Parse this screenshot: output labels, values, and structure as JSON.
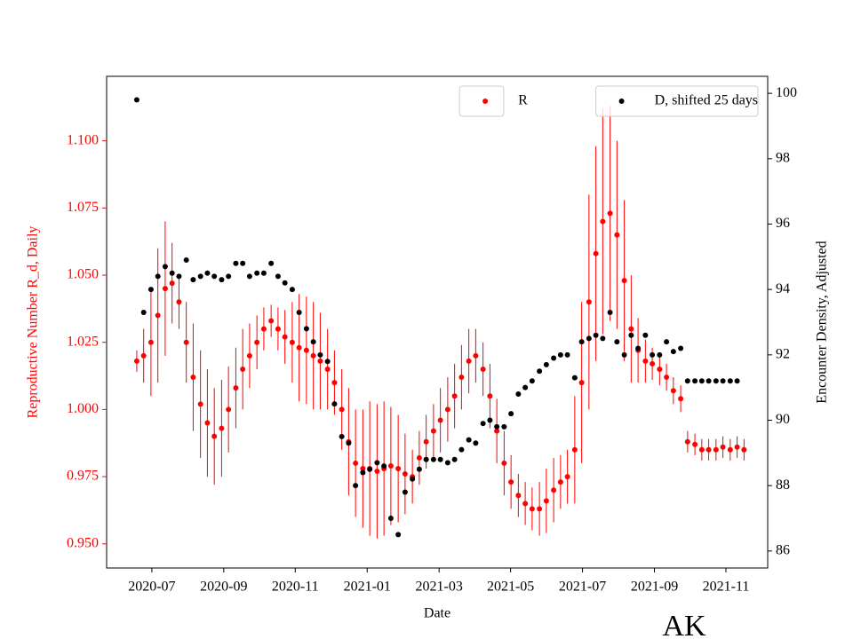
{
  "chart_data": {
    "type": "scatter",
    "xlabel": "Date",
    "ylabel": "Reproductive Number R_d, Daily",
    "y2label": "Encounter Density, Adjusted",
    "annotation": "AK",
    "x": [
      2020.465,
      2020.481,
      2020.498,
      2020.514,
      2020.531,
      2020.547,
      2020.563,
      2020.58,
      2020.596,
      2020.613,
      2020.629,
      2020.645,
      2020.662,
      2020.678,
      2020.695,
      2020.711,
      2020.727,
      2020.744,
      2020.76,
      2020.777,
      2020.793,
      2020.809,
      2020.826,
      2020.842,
      2020.859,
      2020.875,
      2020.891,
      2020.908,
      2020.924,
      2020.941,
      2020.957,
      2020.973,
      2020.99,
      2021.006,
      2021.023,
      2021.039,
      2021.055,
      2021.072,
      2021.088,
      2021.105,
      2021.121,
      2021.137,
      2021.154,
      2021.17,
      2021.187,
      2021.203,
      2021.219,
      2021.236,
      2021.252,
      2021.269,
      2021.285,
      2021.301,
      2021.318,
      2021.334,
      2021.351,
      2021.367,
      2021.383,
      2021.4,
      2021.416,
      2021.433,
      2021.449,
      2021.465,
      2021.482,
      2021.498,
      2021.515,
      2021.531,
      2021.547,
      2021.564,
      2021.58,
      2021.597,
      2021.613,
      2021.629,
      2021.646,
      2021.662,
      2021.679,
      2021.695,
      2021.711,
      2021.728,
      2021.744,
      2021.761,
      2021.777,
      2021.793,
      2021.81,
      2021.826,
      2021.843,
      2021.859,
      2021.875
    ],
    "xlim": [
      2020.395,
      2021.93
    ],
    "xticks": [
      {
        "value": 2020.5,
        "label": "2020-07"
      },
      {
        "value": 2020.667,
        "label": "2020-09"
      },
      {
        "value": 2020.833,
        "label": "2020-11"
      },
      {
        "value": 2021.0,
        "label": "2021-01"
      },
      {
        "value": 2021.167,
        "label": "2021-03"
      },
      {
        "value": 2021.333,
        "label": "2021-05"
      },
      {
        "value": 2021.5,
        "label": "2021-07"
      },
      {
        "value": 2021.667,
        "label": "2021-09"
      },
      {
        "value": 2021.833,
        "label": "2021-11"
      }
    ],
    "ylim": [
      0.941,
      1.124
    ],
    "yticks": [
      {
        "value": 0.95,
        "label": "0.950"
      },
      {
        "value": 0.975,
        "label": "0.975"
      },
      {
        "value": 1.0,
        "label": "1.000"
      },
      {
        "value": 1.025,
        "label": "1.025"
      },
      {
        "value": 1.05,
        "label": "1.050"
      },
      {
        "value": 1.075,
        "label": "1.075"
      },
      {
        "value": 1.1,
        "label": "1.100"
      }
    ],
    "y2lim": [
      85.48,
      100.52
    ],
    "y2ticks": [
      86,
      88,
      90,
      92,
      94,
      96,
      98,
      100
    ],
    "ycolor": "red",
    "series": [
      {
        "name": "R",
        "color": "red",
        "legend_loc": "upper center",
        "values": [
          1.018,
          1.02,
          1.025,
          1.035,
          1.045,
          1.047,
          1.04,
          1.025,
          1.012,
          1.002,
          0.995,
          0.99,
          0.993,
          1.0,
          1.008,
          1.015,
          1.02,
          1.025,
          1.03,
          1.033,
          1.03,
          1.027,
          1.025,
          1.023,
          1.022,
          1.02,
          1.018,
          1.015,
          1.01,
          1.0,
          0.988,
          0.98,
          0.978,
          0.978,
          0.977,
          0.978,
          0.979,
          0.978,
          0.976,
          0.975,
          0.982,
          0.988,
          0.992,
          0.996,
          1.0,
          1.005,
          1.012,
          1.018,
          1.02,
          1.015,
          1.005,
          0.992,
          0.98,
          0.973,
          0.968,
          0.965,
          0.963,
          0.963,
          0.966,
          0.97,
          0.973,
          0.975,
          0.985,
          1.01,
          1.04,
          1.058,
          1.07,
          1.073,
          1.065,
          1.048,
          1.03,
          1.022,
          1.018,
          1.017,
          1.015,
          1.012,
          1.007,
          1.004,
          0.988,
          0.987,
          0.985,
          0.985,
          0.985,
          0.986,
          0.985,
          0.986,
          0.985
        ],
        "errors": [
          0.004,
          0.01,
          0.02,
          0.025,
          0.025,
          0.015,
          0.01,
          0.015,
          0.02,
          0.02,
          0.02,
          0.018,
          0.018,
          0.016,
          0.015,
          0.015,
          0.012,
          0.01,
          0.008,
          0.006,
          0.008,
          0.01,
          0.015,
          0.02,
          0.02,
          0.02,
          0.018,
          0.015,
          0.012,
          0.015,
          0.02,
          0.02,
          0.022,
          0.025,
          0.025,
          0.025,
          0.022,
          0.02,
          0.015,
          0.01,
          0.01,
          0.01,
          0.01,
          0.012,
          0.012,
          0.012,
          0.012,
          0.012,
          0.01,
          0.01,
          0.012,
          0.012,
          0.012,
          0.01,
          0.008,
          0.008,
          0.008,
          0.01,
          0.012,
          0.012,
          0.01,
          0.01,
          0.02,
          0.03,
          0.04,
          0.04,
          0.042,
          0.04,
          0.035,
          0.03,
          0.02,
          0.012,
          0.008,
          0.006,
          0.006,
          0.005,
          0.005,
          0.005,
          0.004,
          0.004,
          0.004,
          0.004,
          0.004,
          0.004,
          0.004,
          0.004,
          0.004
        ]
      },
      {
        "name": "D, shifted 25 days",
        "color": "black",
        "axis": "y2",
        "legend_loc": "upper right",
        "values": [
          99.8,
          93.3,
          94.0,
          94.4,
          94.7,
          94.5,
          94.4,
          94.9,
          94.3,
          94.4,
          94.5,
          94.4,
          94.3,
          94.4,
          94.8,
          94.8,
          94.4,
          94.5,
          94.5,
          94.8,
          94.4,
          94.2,
          94.0,
          93.3,
          92.8,
          92.4,
          92.0,
          91.8,
          90.5,
          89.5,
          89.3,
          88.0,
          88.4,
          88.5,
          88.7,
          88.6,
          87.0,
          86.5,
          87.8,
          88.2,
          88.5,
          88.8,
          88.8,
          88.8,
          88.7,
          88.8,
          89.1,
          89.4,
          89.3,
          89.9,
          90.0,
          89.8,
          89.8,
          90.2,
          90.8,
          91.0,
          91.2,
          91.5,
          91.7,
          91.9,
          92.0,
          92.0,
          91.3,
          92.4,
          92.5,
          92.6,
          92.5,
          93.3,
          92.4,
          92.0,
          92.6,
          92.2,
          92.6,
          92.0,
          92.0,
          92.4,
          92.1,
          92.2,
          91.2,
          91.2,
          91.2,
          91.2,
          91.2,
          91.2,
          91.2,
          91.2,
          null
        ]
      }
    ]
  }
}
